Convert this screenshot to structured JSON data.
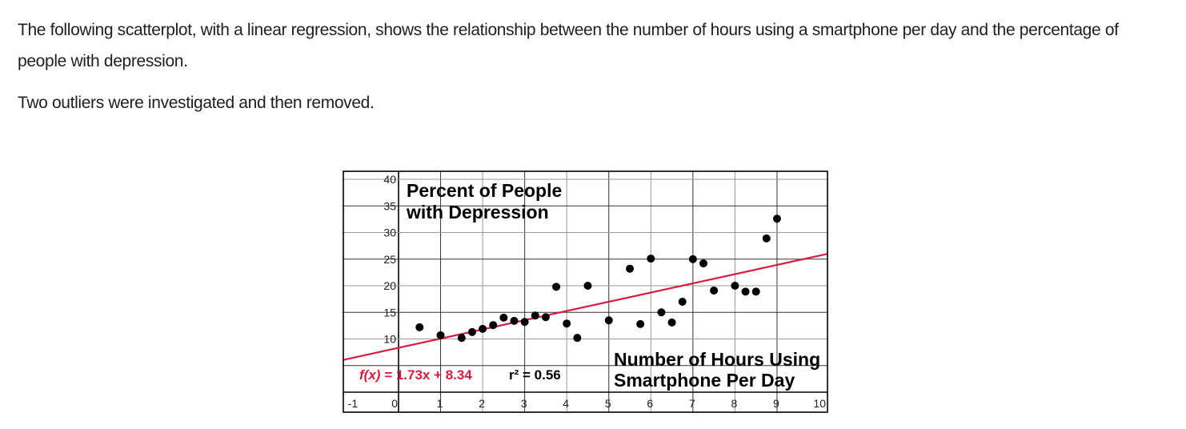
{
  "question": {
    "paragraph_1": "The following scatterplot, with a linear regression, shows the relationship between the number of hours using a smartphone per day and the percentage of people with depression.",
    "paragraph_2": "Two outliers were investigated and then removed."
  },
  "colors": {
    "regression_line": "#d81b3f",
    "points": "#000000",
    "grid_dark": "#333333",
    "grid_light": "#9a9a9a",
    "text": "#1f1f1f"
  },
  "chart_data": {
    "type": "scatter",
    "title": "Percent of People with Depression",
    "title_lines": [
      "Percent of People",
      "with Depression"
    ],
    "xlabel": "Number of Hours Using Smartphone Per Day",
    "xlabel_lines": [
      "Number of Hours Using",
      "Smartphone Per Day"
    ],
    "ylabel": "Percent of People with Depression",
    "xlim": [
      -1,
      10
    ],
    "ylim": [
      0,
      40
    ],
    "x_ticks": [
      -1,
      0,
      1,
      2,
      3,
      4,
      5,
      6,
      7,
      8,
      9,
      10
    ],
    "y_ticks": [
      10,
      15,
      20,
      25,
      30,
      35,
      40
    ],
    "grid": true,
    "points": [
      {
        "x": 0.5,
        "y": 12.2
      },
      {
        "x": 1.0,
        "y": 10.7
      },
      {
        "x": 1.5,
        "y": 10.2
      },
      {
        "x": 1.75,
        "y": 11.3
      },
      {
        "x": 2.0,
        "y": 11.9
      },
      {
        "x": 2.25,
        "y": 12.6
      },
      {
        "x": 2.5,
        "y": 14.0
      },
      {
        "x": 2.75,
        "y": 13.4
      },
      {
        "x": 3.0,
        "y": 13.2
      },
      {
        "x": 3.25,
        "y": 14.4
      },
      {
        "x": 3.5,
        "y": 14.1
      },
      {
        "x": 3.75,
        "y": 19.8
      },
      {
        "x": 4.0,
        "y": 12.9
      },
      {
        "x": 4.25,
        "y": 10.2
      },
      {
        "x": 4.5,
        "y": 20.0
      },
      {
        "x": 5.0,
        "y": 13.5
      },
      {
        "x": 5.5,
        "y": 23.2
      },
      {
        "x": 5.75,
        "y": 12.8
      },
      {
        "x": 6.0,
        "y": 25.1
      },
      {
        "x": 6.25,
        "y": 15.0
      },
      {
        "x": 6.5,
        "y": 13.1
      },
      {
        "x": 6.75,
        "y": 17.0
      },
      {
        "x": 7.0,
        "y": 25.0
      },
      {
        "x": 7.25,
        "y": 24.2
      },
      {
        "x": 7.5,
        "y": 19.1
      },
      {
        "x": 8.0,
        "y": 20.0
      },
      {
        "x": 8.25,
        "y": 18.9
      },
      {
        "x": 8.5,
        "y": 18.9
      },
      {
        "x": 8.75,
        "y": 28.9
      },
      {
        "x": 9.0,
        "y": 32.6
      }
    ],
    "regression": {
      "slope": 1.73,
      "intercept": 8.34,
      "equation_prefix": "f(x) =",
      "equation_body": "1.73x + 8.34",
      "r_squared_label": "r² = 0.56",
      "r_squared": 0.56
    }
  }
}
